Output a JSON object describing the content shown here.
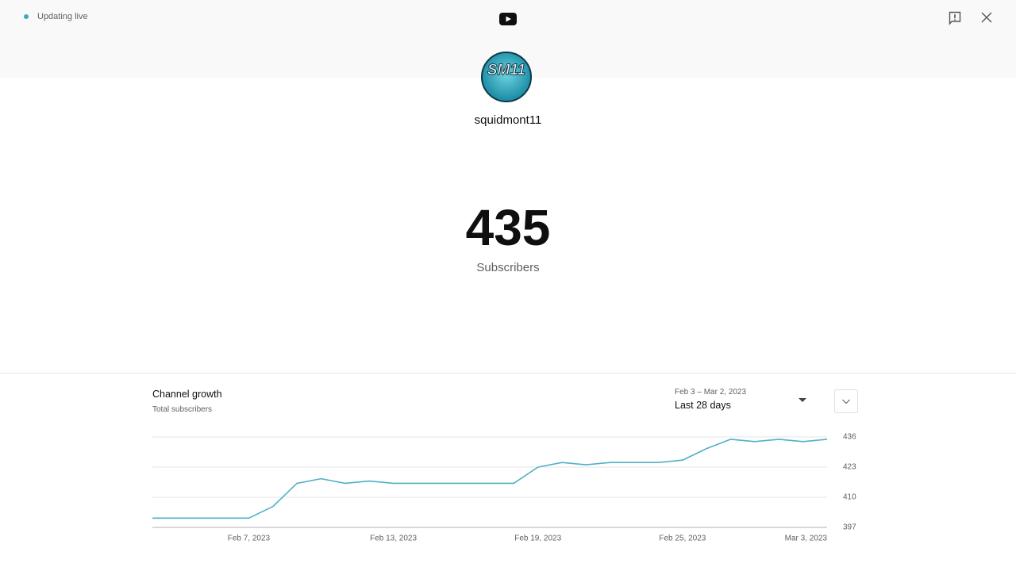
{
  "status": "Updating live",
  "avatar_label": "SM11",
  "channel": "squidmont11",
  "count": 435,
  "count_label": "Subscribers",
  "panel": {
    "title": "Channel growth",
    "subtitle": "Total subscribers",
    "date_range": "Feb 3 – Mar 2, 2023",
    "period": "Last 28 days"
  },
  "chart_data": {
    "type": "line",
    "categories": [
      null,
      null,
      null,
      null,
      "Feb 7, 2023",
      null,
      null,
      null,
      null,
      null,
      "Feb 13, 2023",
      null,
      null,
      null,
      null,
      null,
      "Feb 19, 2023",
      null,
      null,
      null,
      null,
      null,
      "Feb 25, 2023",
      null,
      null,
      null,
      null,
      null,
      "Mar 3, 2023"
    ],
    "values": [
      401,
      401,
      401,
      401,
      401,
      406,
      416,
      418,
      416,
      417,
      416,
      416,
      416,
      416,
      416,
      416,
      423,
      425,
      424,
      425,
      425,
      425,
      426,
      431,
      435,
      434,
      435,
      434,
      435
    ],
    "color": "#4fb0c6",
    "ylim": [
      397,
      436
    ],
    "yticks": [
      397,
      410,
      423,
      436
    ],
    "grid": true
  }
}
